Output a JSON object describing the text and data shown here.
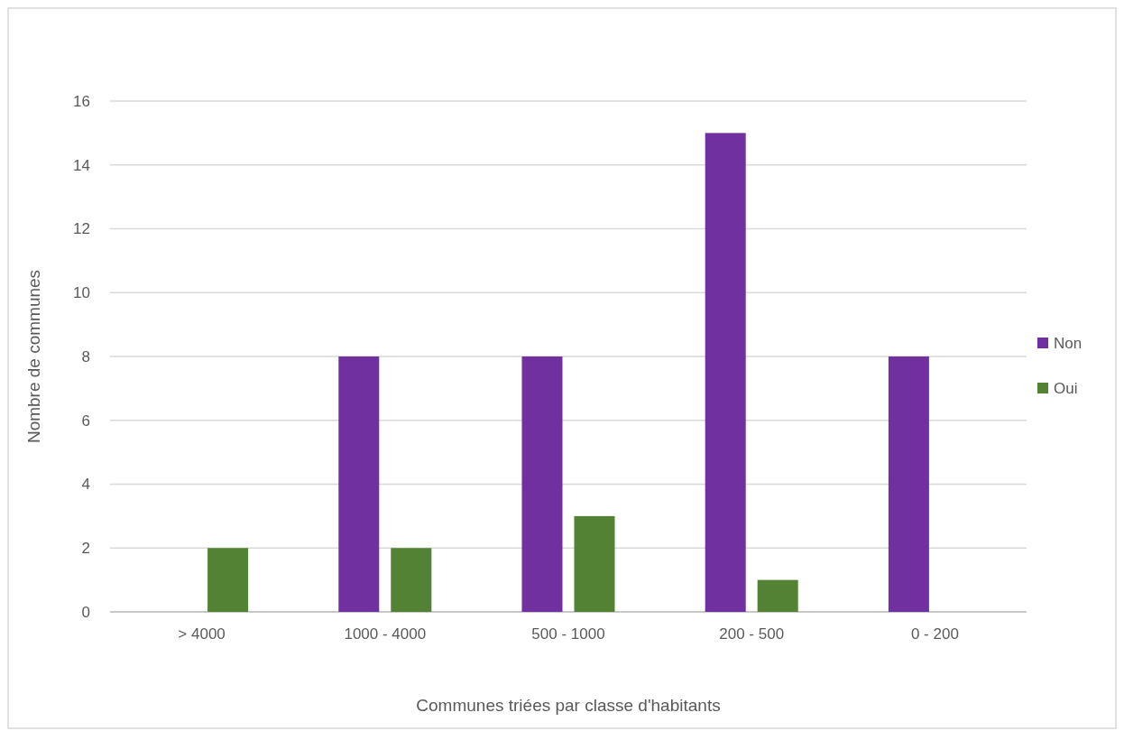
{
  "chart_data": {
    "type": "bar",
    "xlabel": "Communes triées par classe d'habitants",
    "ylabel": "Nombre de communes",
    "categories": [
      "> 4000",
      "1000 - 4000",
      "500 - 1000",
      "200 - 500",
      "0 - 200"
    ],
    "series": [
      {
        "name": "Non",
        "color": "#7030a0",
        "values": [
          0,
          8,
          8,
          15,
          8
        ]
      },
      {
        "name": "Oui",
        "color": "#548235",
        "values": [
          2,
          2,
          3,
          1,
          0
        ]
      }
    ],
    "ylim": [
      0,
      16
    ],
    "yticks": [
      0,
      2,
      4,
      6,
      8,
      10,
      12,
      14,
      16
    ],
    "grid": "y",
    "legend": "right"
  }
}
